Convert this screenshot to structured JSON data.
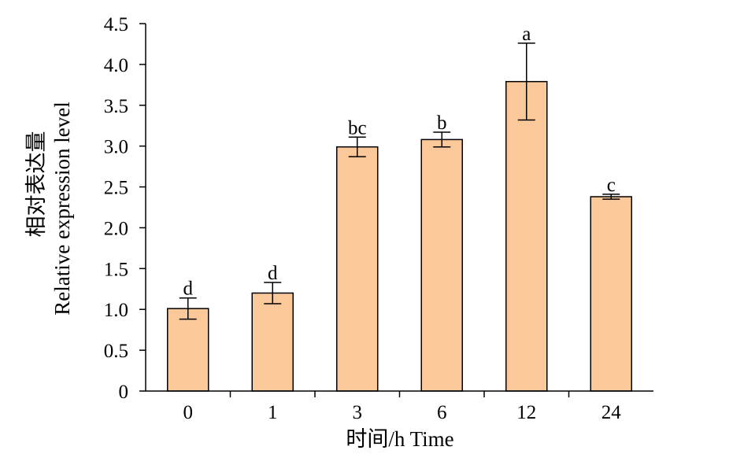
{
  "chart_data": {
    "type": "bar",
    "categories": [
      "0",
      "1",
      "3",
      "6",
      "12",
      "24"
    ],
    "values": [
      1.01,
      1.2,
      2.99,
      3.08,
      3.79,
      2.38
    ],
    "errors": [
      0.13,
      0.13,
      0.12,
      0.09,
      0.47,
      0.03
    ],
    "significance": [
      "d",
      "d",
      "bc",
      "b",
      "a",
      "c"
    ],
    "xlabel": "时间/h Time",
    "ylabel_cn": "相对表达量",
    "ylabel_en": "Relative expression level",
    "ylim": [
      0,
      4.5
    ],
    "yticks": [
      0,
      0.5,
      1.0,
      1.5,
      2.0,
      2.5,
      3.0,
      3.5,
      4.0,
      4.5
    ],
    "ytick_labels": [
      "0",
      "0.5",
      "1.0",
      "1.5",
      "2.0",
      "2.5",
      "3.0",
      "3.5",
      "4.0",
      "4.5"
    ],
    "bar_color": "#FAC899",
    "bar_edge_color": "#000000",
    "grid": false,
    "legend": "none"
  }
}
